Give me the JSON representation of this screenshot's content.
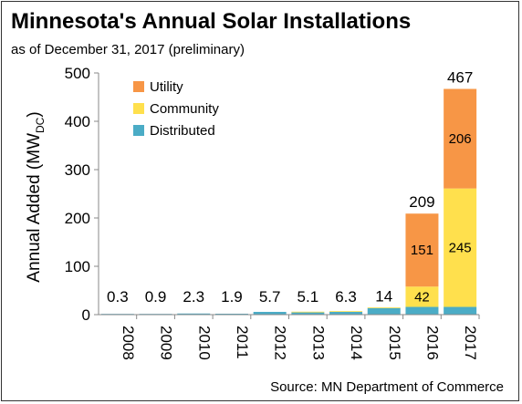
{
  "chart_data": {
    "type": "bar",
    "stacked": true,
    "title": "Minnesota's Annual Solar Installations",
    "subtitle": "as of December 31, 2017 (preliminary)",
    "ylabel": "Annual Added (MW",
    "ylabel_subscript": "DC",
    "ylabel_close": ")",
    "source": "Source: MN Department of Commerce",
    "ylim": [
      0,
      500
    ],
    "yticks": [
      0,
      100,
      200,
      300,
      400,
      500
    ],
    "grid": false,
    "legend_position": "top-left",
    "categories": [
      "2008",
      "2009",
      "2010",
      "2011",
      "2012",
      "2013",
      "2014",
      "2015",
      "2016",
      "2017"
    ],
    "series": [
      {
        "name": "Distributed",
        "color": "#4bacc6",
        "values": [
          0.3,
          0.9,
          2.3,
          1.9,
          5.7,
          4.6,
          5.8,
          13.5,
          16,
          16
        ],
        "labels": [
          "",
          "",
          "",
          "",
          "",
          "",
          "",
          "",
          "",
          ""
        ]
      },
      {
        "name": "Community",
        "color": "#ffe04d",
        "values": [
          0,
          0,
          0,
          0,
          0,
          0.5,
          0.5,
          0.5,
          42,
          245
        ],
        "labels": [
          "",
          "",
          "",
          "",
          "",
          "",
          "",
          "",
          "42",
          "245"
        ]
      },
      {
        "name": "Utility",
        "color": "#f79646",
        "values": [
          0,
          0,
          0,
          0,
          0,
          0,
          0,
          0,
          151,
          206
        ],
        "labels": [
          "",
          "",
          "",
          "",
          "",
          "",
          "",
          "",
          "151",
          "206"
        ]
      }
    ],
    "totals": [
      "0.3",
      "0.9",
      "2.3",
      "1.9",
      "5.7",
      "5.1",
      "6.3",
      "14",
      "209",
      "467"
    ],
    "legend_order": [
      "Utility",
      "Community",
      "Distributed"
    ]
  }
}
